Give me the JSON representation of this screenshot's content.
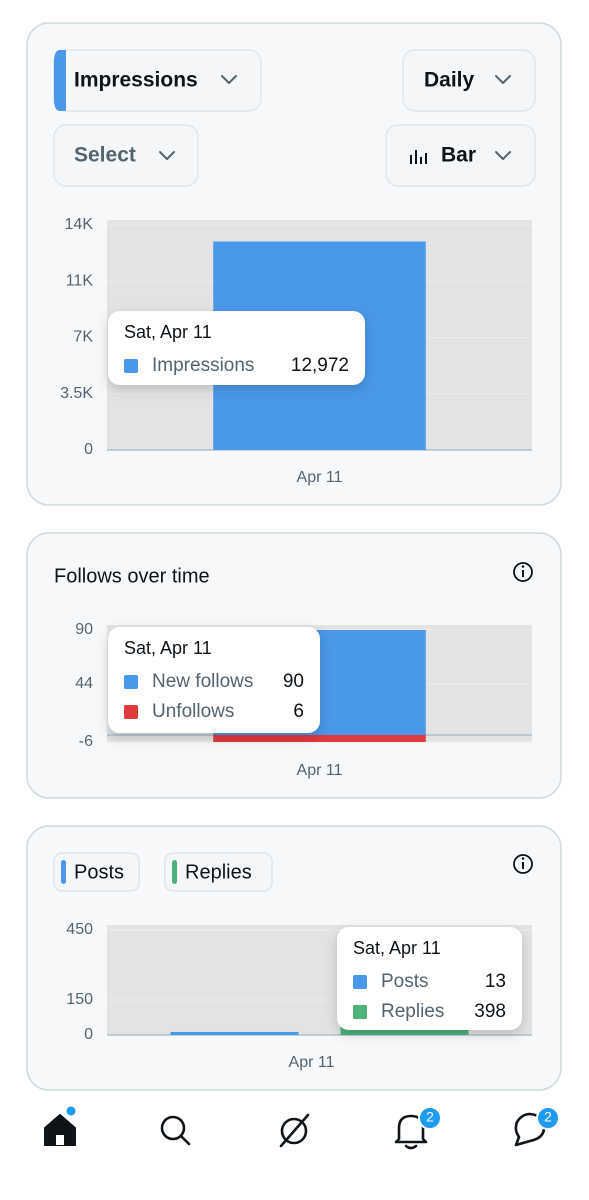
{
  "controls": {
    "metric": "Impressions",
    "interval": "Daily",
    "filter": "Select",
    "chart_kind": "Bar"
  },
  "chart_data": [
    {
      "type": "bar",
      "categories": [
        "Apr 11"
      ],
      "tooltip_title": "Sat, Apr 11",
      "series": [
        {
          "name": "Impressions",
          "color": "#4a98e9",
          "values": [
            12972
          ],
          "value_labels": [
            "12,972"
          ]
        }
      ],
      "ylim": [
        0,
        14000
      ],
      "yticks": [
        0,
        {
          "value": 3500,
          "label": "3.5K"
        },
        {
          "value": 7000,
          "label": "7K"
        },
        {
          "value": 10500,
          "label": "11K"
        },
        {
          "value": 14000,
          "label": "14K"
        }
      ]
    },
    {
      "type": "bar",
      "title": "Follows over time",
      "categories": [
        "Apr 11"
      ],
      "tooltip_title": "Sat, Apr 11",
      "stacked": true,
      "series": [
        {
          "name": "New follows",
          "color": "#4a98e9",
          "values": [
            90
          ]
        },
        {
          "name": "Unfollows",
          "color": "#e0393e",
          "values": [
            -6
          ],
          "value_labels": [
            "6"
          ]
        }
      ],
      "ylim": [
        -6,
        90
      ],
      "yticks": [
        -6,
        44,
        90
      ]
    },
    {
      "type": "bar",
      "categories": [
        "Apr 11"
      ],
      "tooltip_title": "Sat, Apr 11",
      "series": [
        {
          "name": "Posts",
          "color": "#4a98e9",
          "values": [
            13
          ]
        },
        {
          "name": "Replies",
          "color": "#4bb37a",
          "values": [
            398
          ]
        }
      ],
      "ylim": [
        0,
        450
      ],
      "yticks": [
        0,
        150,
        450
      ]
    }
  ],
  "nav": {
    "notifications_badge": "2",
    "messages_badge": "2"
  }
}
